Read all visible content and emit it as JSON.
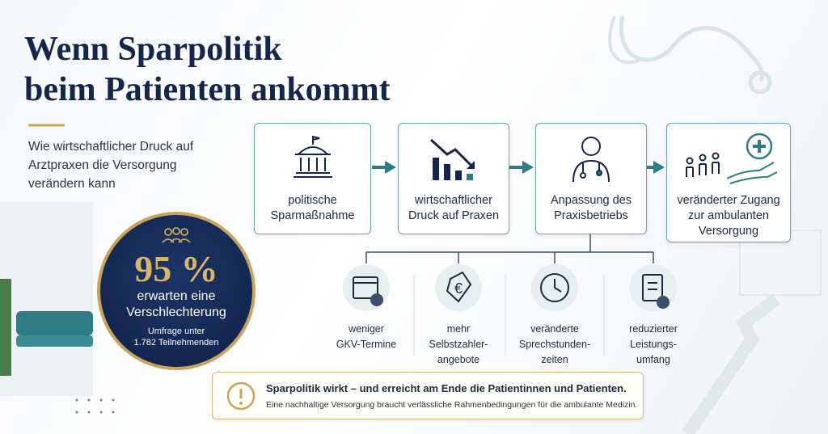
{
  "header": {
    "title": [
      "Wenn Sparpolitik",
      "beim Patienten ankommt"
    ],
    "subtitle": [
      "Wie wirtschaftlicher Druck auf",
      "Arztpraxen die Versorgung",
      "verändern kann"
    ]
  },
  "stat": {
    "value": "95 %",
    "label": [
      "erwarten eine",
      "Verschlechterung"
    ],
    "note": [
      "Umfrage unter",
      "1.782 Teilnehmenden"
    ]
  },
  "steps": [
    {
      "label": [
        "politische",
        "Sparmaßnahme"
      ]
    },
    {
      "label": [
        "wirtschaftlicher",
        "Druck auf Praxen"
      ]
    },
    {
      "label": [
        "Anpassung des",
        "Praxisbetriebs"
      ]
    },
    {
      "label": [
        "veränderter Zugang",
        "zur ambulanten",
        "Versorgung"
      ]
    }
  ],
  "effects": [
    {
      "label": [
        "weniger",
        "GKV-Termine"
      ]
    },
    {
      "label": [
        "mehr",
        "Selbstzahler-",
        "angebote"
      ]
    },
    {
      "label": [
        "veränderte",
        "Sprechstunden-",
        "zeiten"
      ]
    },
    {
      "label": [
        "reduzierter",
        "Leistungs-",
        "umfang"
      ]
    }
  ],
  "callout": {
    "headline": "Sparpolitik wirkt – und erreicht am Ende die Patientinnen und Patienten.",
    "text": "Eine nachhaltige Versorgung braucht verlässliche Rahmenbedingungen für die ambulante Medizin."
  }
}
